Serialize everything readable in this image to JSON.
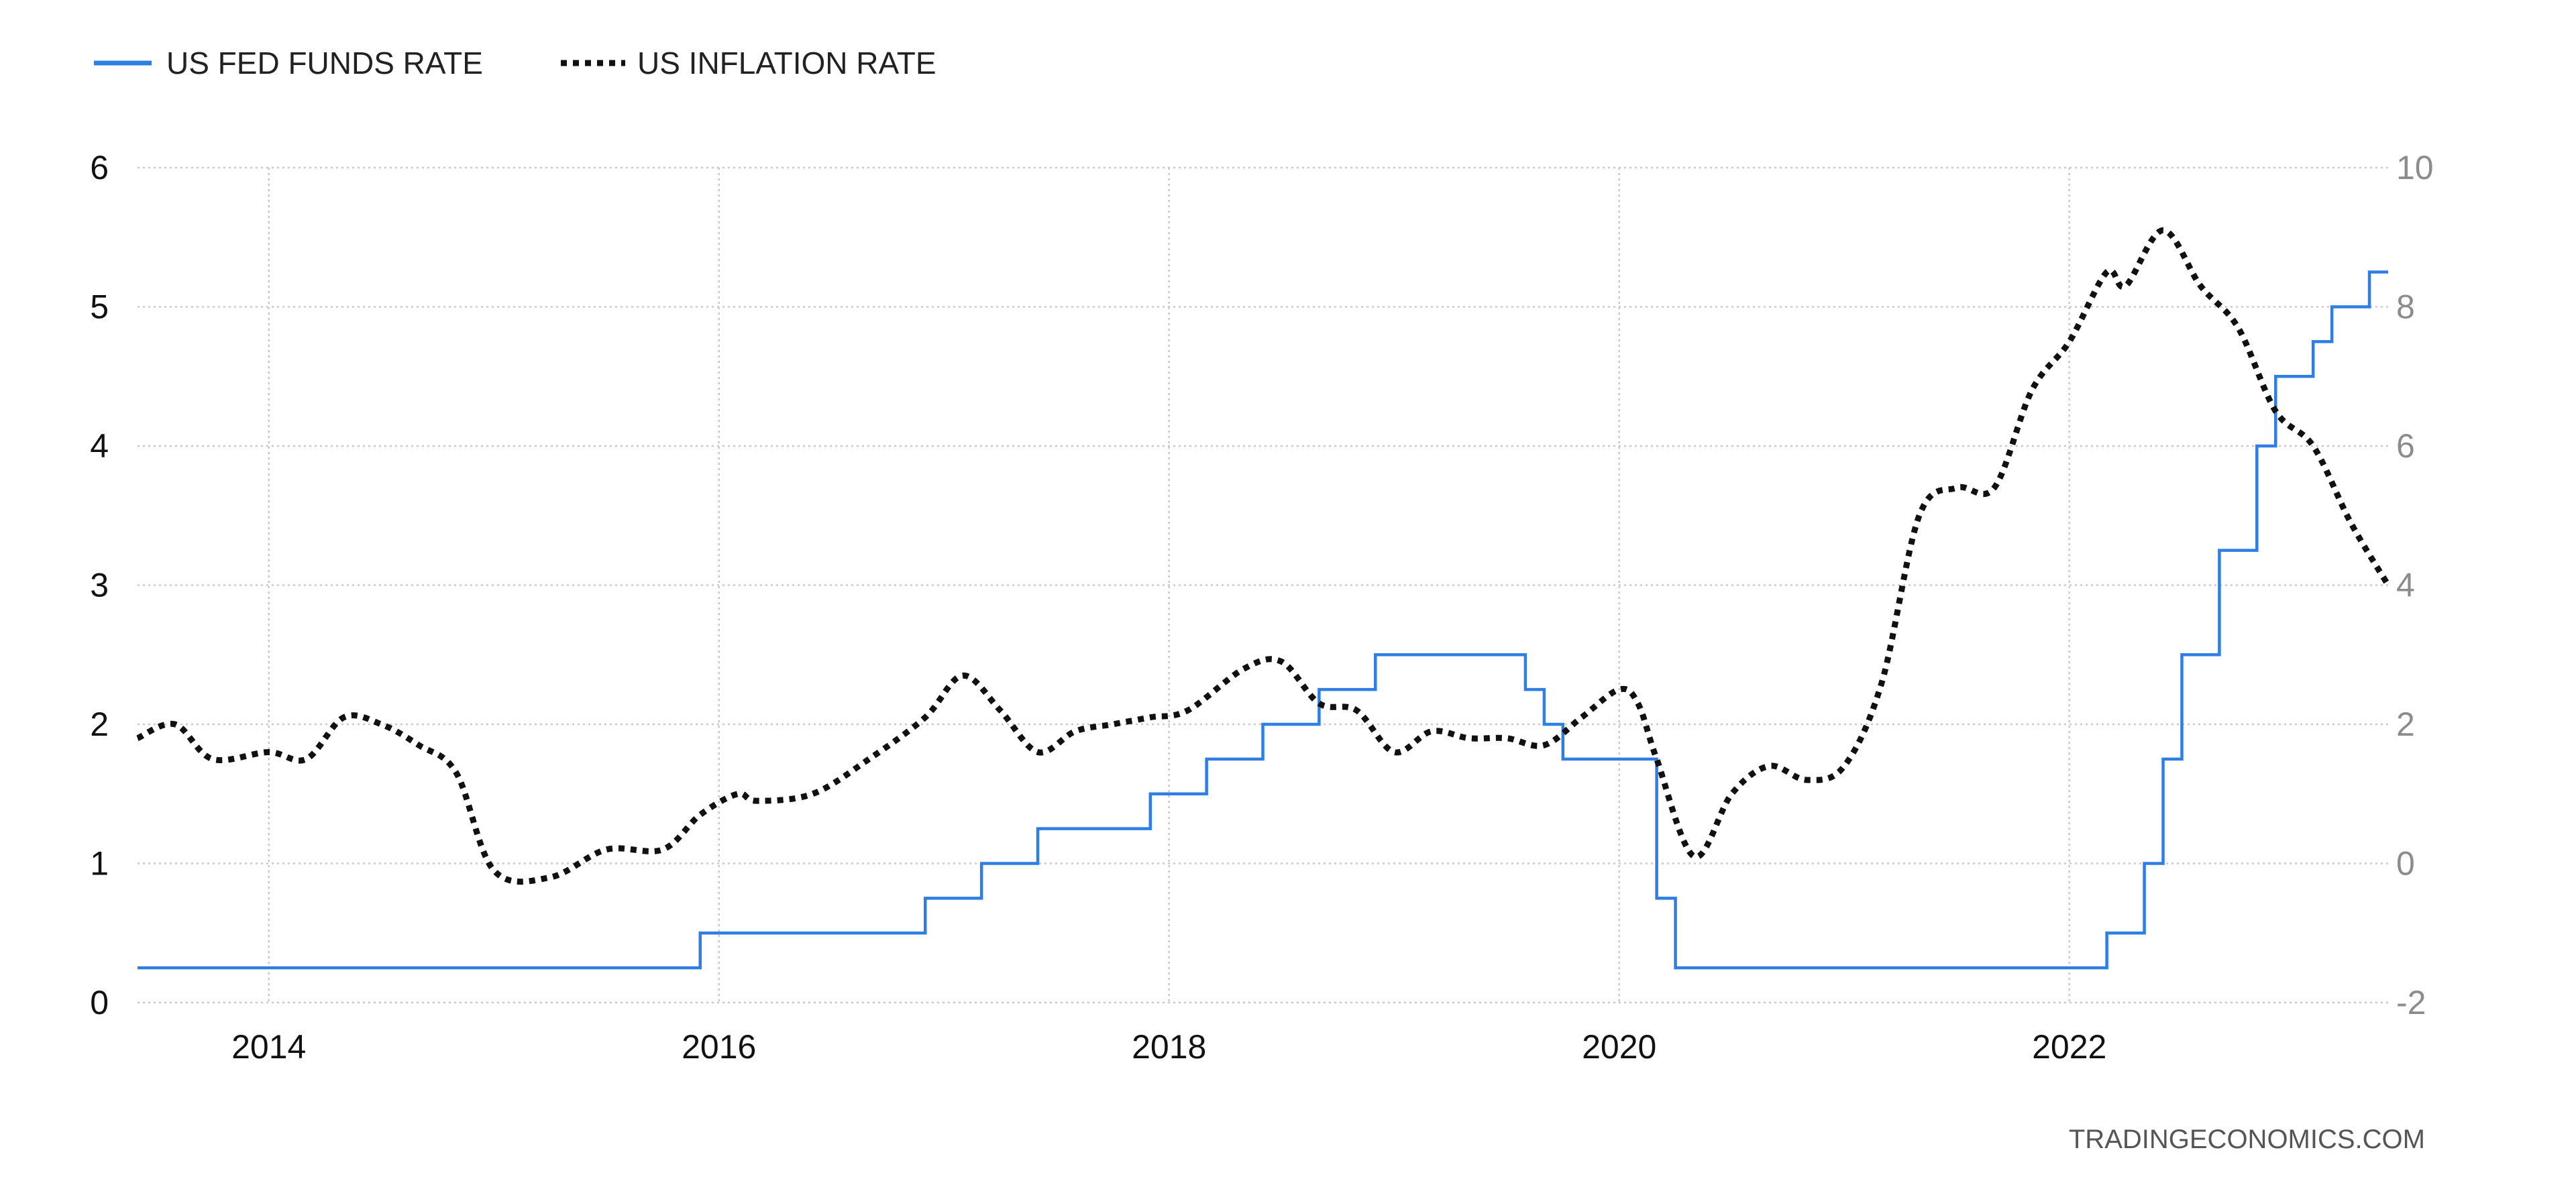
{
  "chart_data": {
    "type": "line",
    "credit": "TRADINGECONOMICS.COM",
    "grid": true,
    "legend_position": "top-left",
    "x_range": [
      "2013-06",
      "2023-06"
    ],
    "x_ticks": [
      "2014",
      "2016",
      "2018",
      "2020",
      "2022"
    ],
    "y_left": {
      "range": [
        0,
        6
      ],
      "ticks": [
        "0",
        "1",
        "2",
        "3",
        "4",
        "5",
        "6"
      ]
    },
    "y_right": {
      "range": [
        -2,
        10
      ],
      "ticks": [
        "-2",
        "0",
        "2",
        "4",
        "6",
        "8",
        "10"
      ]
    },
    "series": [
      {
        "name": "US FED FUNDS RATE",
        "axis": "left",
        "color": "#2f7ee3",
        "style": "step",
        "x": [
          "2013-06",
          "2015-12",
          "2016-12",
          "2017-03",
          "2017-06",
          "2017-12",
          "2018-03",
          "2018-06",
          "2018-09",
          "2018-12",
          "2019-08",
          "2019-09",
          "2019-10",
          "2020-03",
          "2020-04",
          "2022-03",
          "2022-05",
          "2022-06",
          "2022-07",
          "2022-09",
          "2022-11",
          "2022-12",
          "2023-02",
          "2023-03",
          "2023-05",
          "2023-06"
        ],
        "y": [
          0.25,
          0.5,
          0.75,
          1.0,
          1.25,
          1.5,
          1.75,
          2.0,
          2.25,
          2.5,
          2.25,
          2.0,
          1.75,
          0.75,
          0.25,
          0.5,
          1.0,
          1.75,
          2.5,
          3.25,
          4.0,
          4.5,
          4.75,
          5.0,
          5.25,
          5.25
        ]
      },
      {
        "name": "US INFLATION RATE",
        "axis": "right",
        "color": "#111111",
        "style": "dotted",
        "x": [
          "2013-06",
          "2013-08",
          "2013-10",
          "2014-01",
          "2014-03",
          "2014-05",
          "2014-07",
          "2014-09",
          "2014-11",
          "2015-01",
          "2015-04",
          "2015-07",
          "2015-10",
          "2015-12",
          "2016-02",
          "2016-03",
          "2016-06",
          "2016-09",
          "2016-12",
          "2017-02",
          "2017-04",
          "2017-06",
          "2017-08",
          "2017-10",
          "2017-12",
          "2018-02",
          "2018-05",
          "2018-07",
          "2018-09",
          "2018-11",
          "2019-01",
          "2019-03",
          "2019-05",
          "2019-07",
          "2019-09",
          "2019-11",
          "2020-01",
          "2020-02",
          "2020-03",
          "2020-05",
          "2020-07",
          "2020-09",
          "2020-11",
          "2021-01",
          "2021-03",
          "2021-05",
          "2021-07",
          "2021-09",
          "2021-11",
          "2022-01",
          "2022-03",
          "2022-04",
          "2022-06",
          "2022-08",
          "2022-10",
          "2022-12",
          "2023-02",
          "2023-04",
          "2023-06"
        ],
        "y": [
          1.8,
          2.0,
          1.5,
          1.6,
          1.5,
          2.1,
          2.0,
          1.7,
          1.3,
          -0.1,
          -0.2,
          0.2,
          0.2,
          0.7,
          1.0,
          0.9,
          1.0,
          1.5,
          2.1,
          2.7,
          2.2,
          1.6,
          1.9,
          2.0,
          2.1,
          2.2,
          2.8,
          2.9,
          2.3,
          2.2,
          1.6,
          1.9,
          1.8,
          1.8,
          1.7,
          2.1,
          2.5,
          2.3,
          1.5,
          0.1,
          1.0,
          1.4,
          1.2,
          1.4,
          2.6,
          5.0,
          5.4,
          5.4,
          6.8,
          7.5,
          8.5,
          8.3,
          9.1,
          8.3,
          7.7,
          6.5,
          6.0,
          4.9,
          4.0
        ]
      }
    ]
  }
}
